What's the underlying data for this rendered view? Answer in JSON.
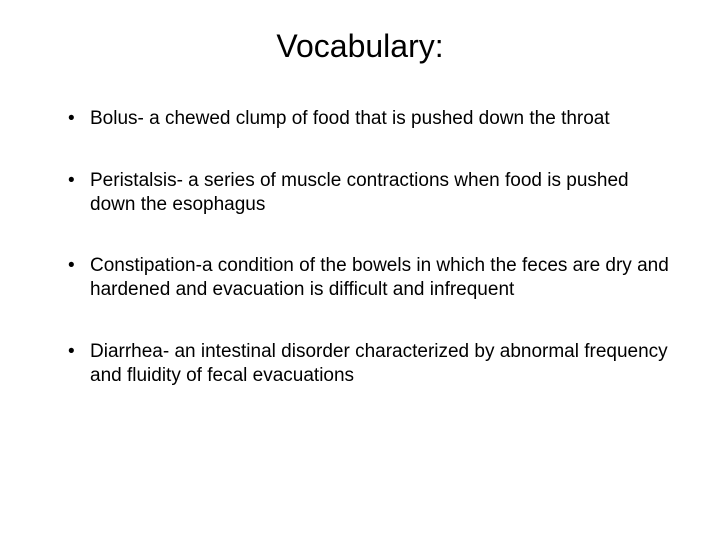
{
  "title": "Vocabulary:",
  "items": [
    "Bolus- a chewed clump of food that is pushed down the throat",
    "Peristalsis- a series of muscle contractions when food is pushed down the esophagus",
    "Constipation-a condition of the bowels in which the feces are dry and hardened and evacuation is difficult and infrequent",
    "Diarrhea- an intestinal disorder characterized by abnormal frequency and fluidity of fecal evacuations"
  ],
  "colors": {
    "background": "#ffffff",
    "text": "#000000"
  },
  "typography": {
    "title_fontsize": 32,
    "body_fontsize": 19,
    "font_family": "Arial"
  }
}
